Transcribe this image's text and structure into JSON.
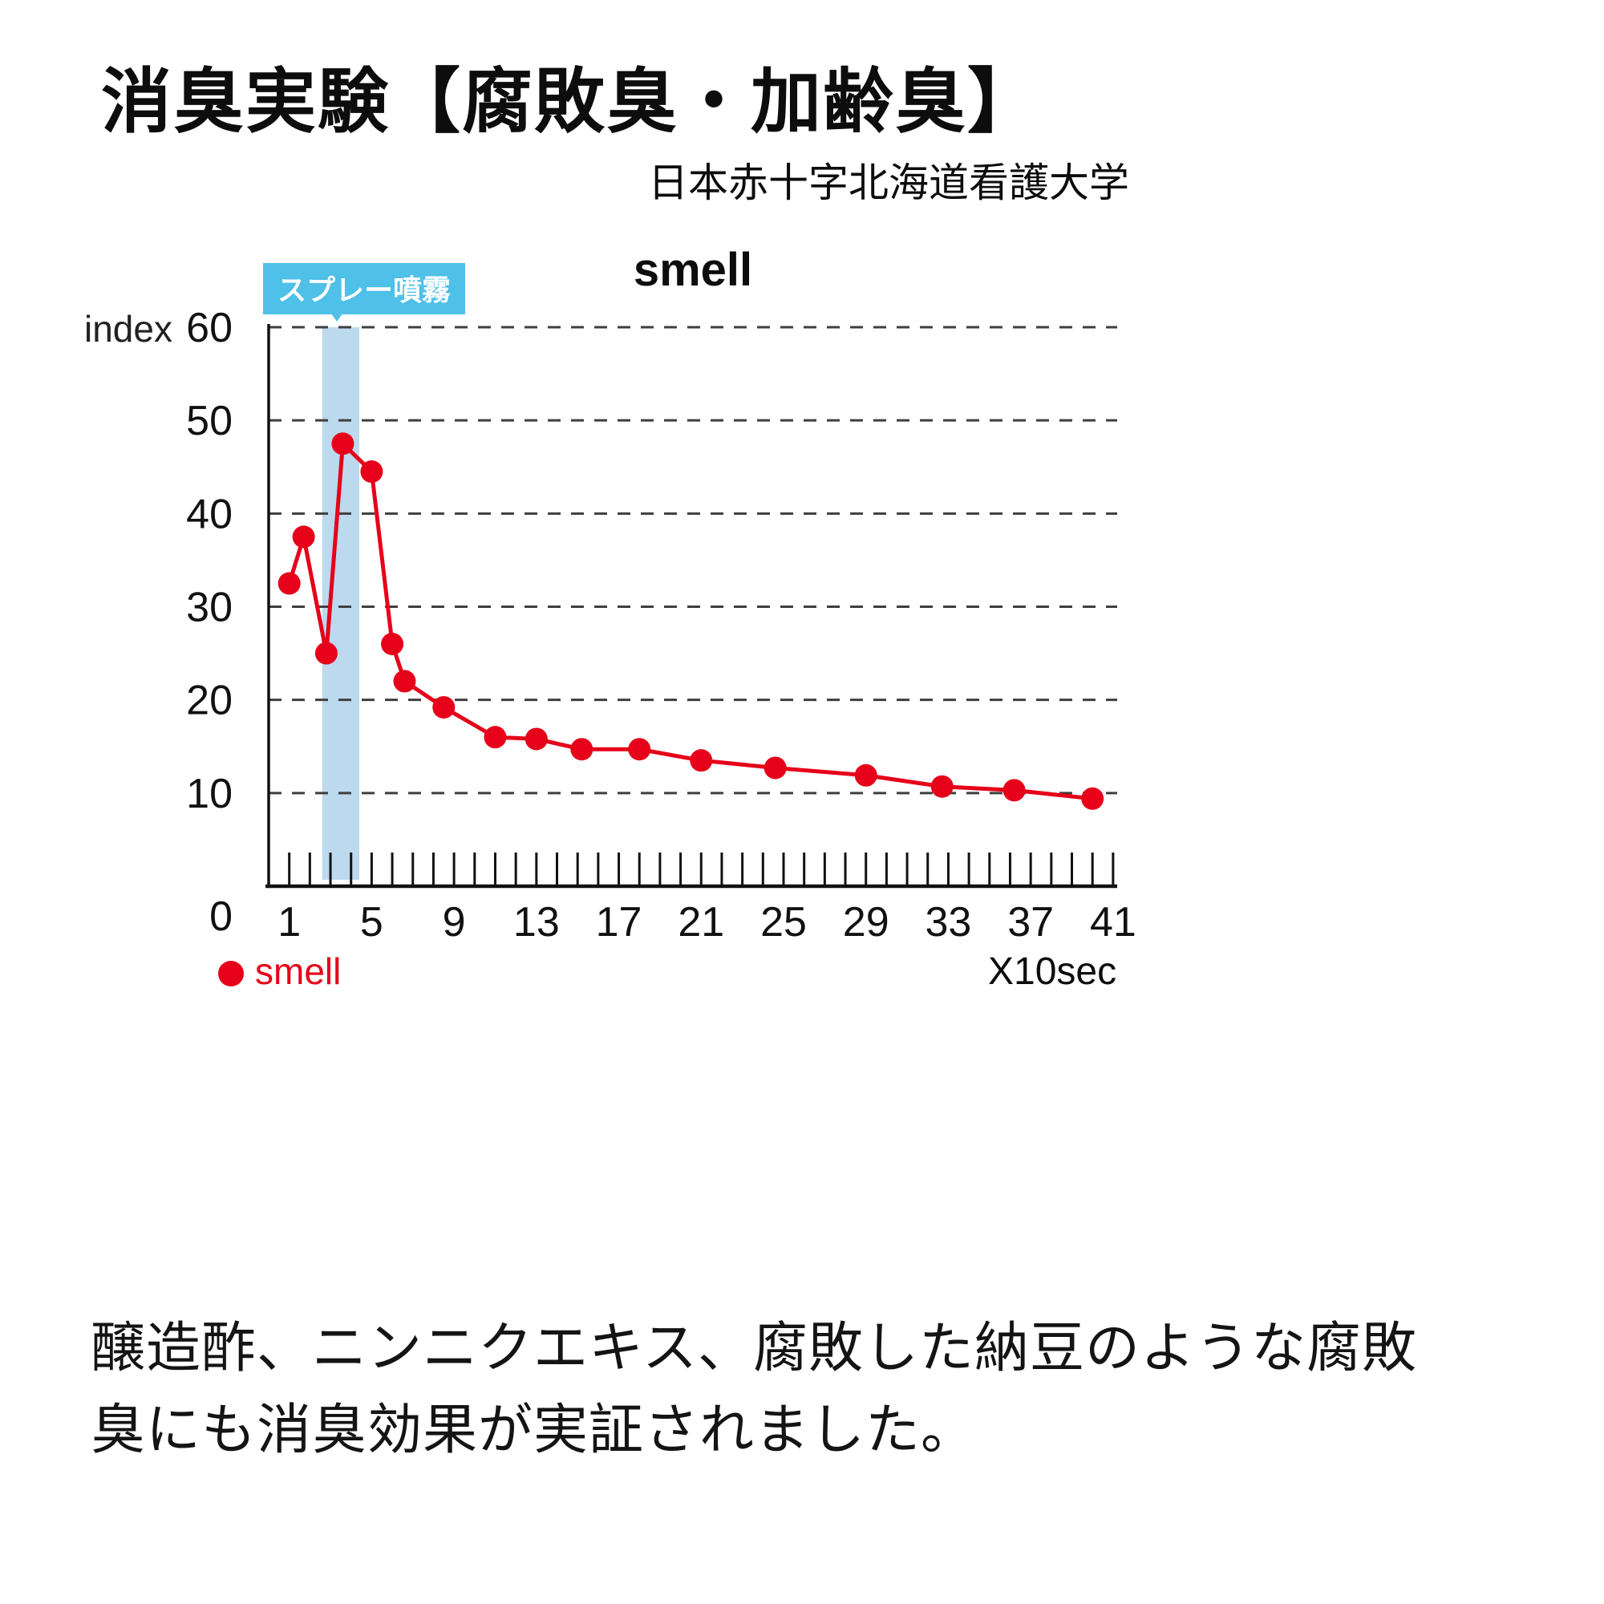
{
  "page": {
    "title": "消臭実験【腐敗臭・加齢臭】",
    "subtitle": "日本赤十字北海道看護大学",
    "description_line1": "醸造酢、ニンニクエキス、腐敗した納豆のような腐敗",
    "description_line2": "臭にも消臭効果が実証されました。"
  },
  "colors": {
    "series_red": "#e60019",
    "band_blue": "#bcd9ee",
    "callout_blue": "#4fc0e7",
    "grid_gray": "#3f3f3f"
  },
  "chart_data": {
    "type": "line",
    "title": "smell",
    "ylabel": "index",
    "xlabel": "X10sec",
    "xlim": [
      0,
      41.2
    ],
    "ylim": [
      0,
      60
    ],
    "yticks": [
      0,
      10,
      20,
      30,
      40,
      50,
      60
    ],
    "xticks": [
      1,
      5,
      9,
      13,
      17,
      21,
      25,
      29,
      33,
      37,
      41
    ],
    "minor_xtick_step": 1,
    "grid": "horizontal dashed",
    "legend_position": "bottom-left",
    "series": [
      {
        "name": "smell",
        "color": "#e60019",
        "x": [
          1,
          1.7,
          2.8,
          3.6,
          5,
          6,
          6.6,
          8.5,
          11,
          13,
          15.2,
          18,
          21,
          24.6,
          29,
          32.7,
          36.2,
          40
        ],
        "y": [
          32.5,
          37.5,
          25,
          47.5,
          44.5,
          26,
          22,
          19.2,
          16,
          15.8,
          14.7,
          14.7,
          13.5,
          12.7,
          11.9,
          10.7,
          10.3,
          9.4
        ]
      }
    ],
    "annotation": {
      "label": "スプレー噴霧",
      "band_x": [
        2.6,
        4.4
      ],
      "band_color": "#bcd9ee",
      "label_bg": "#4fc0e7",
      "label_color": "#ffffff"
    }
  }
}
